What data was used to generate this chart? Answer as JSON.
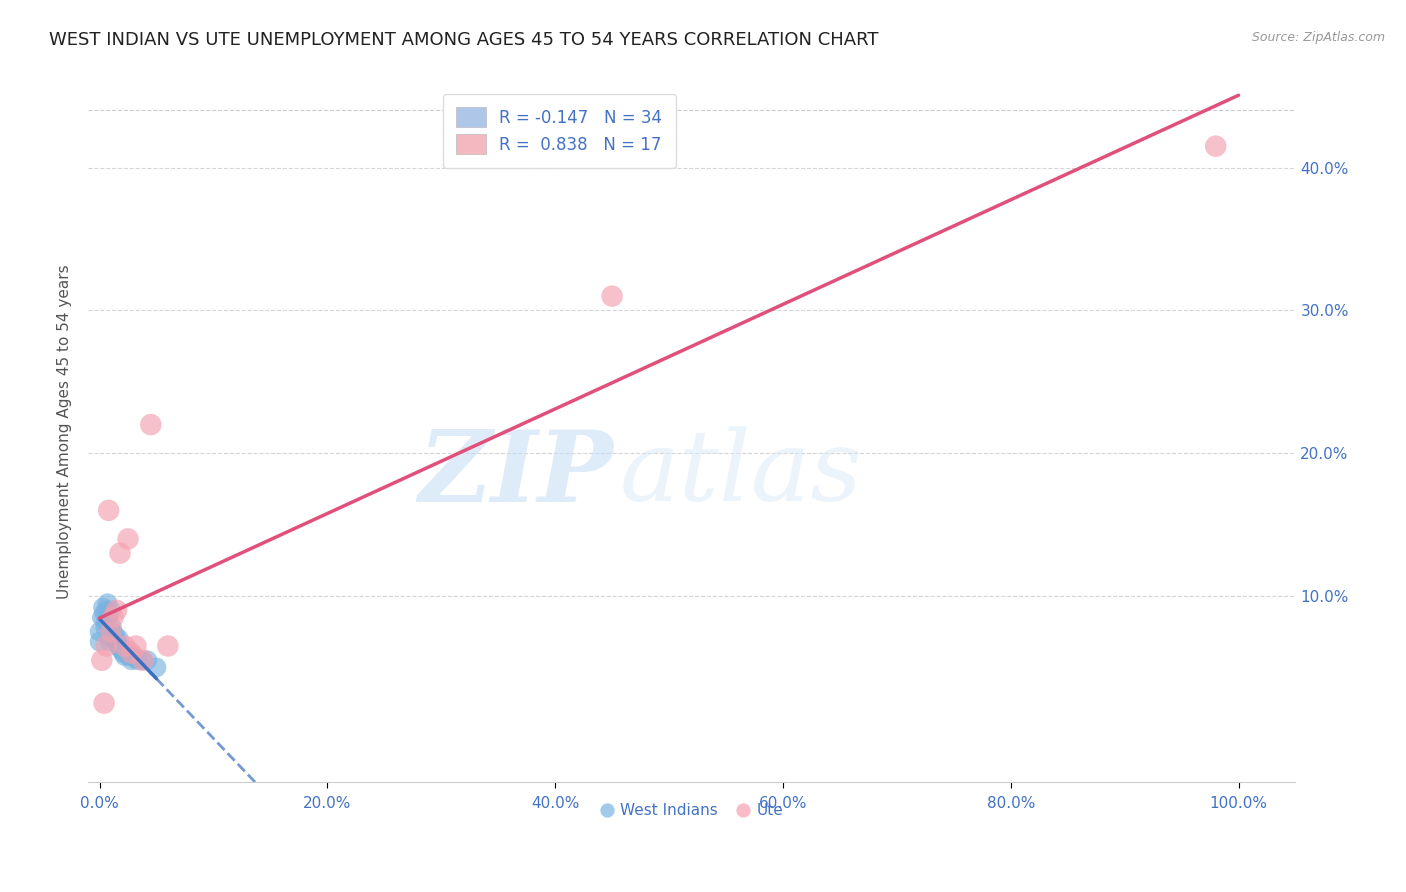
{
  "title": "WEST INDIAN VS UTE UNEMPLOYMENT AMONG AGES 45 TO 54 YEARS CORRELATION CHART",
  "source": "Source: ZipAtlas.com",
  "ylabel_label": "Unemployment Among Ages 45 to 54 years",
  "x_tick_labels": [
    "0.0%",
    "20.0%",
    "40.0%",
    "60.0%",
    "80.0%",
    "100.0%"
  ],
  "x_tick_values": [
    0.0,
    0.2,
    0.4,
    0.6,
    0.8,
    1.0
  ],
  "y_tick_labels": [
    "10.0%",
    "20.0%",
    "30.0%",
    "40.0%"
  ],
  "y_tick_values": [
    0.1,
    0.2,
    0.3,
    0.4
  ],
  "xlim": [
    -0.01,
    1.05
  ],
  "ylim": [
    -0.03,
    0.46
  ],
  "legend_entries": [
    {
      "label": "R = -0.147   N = 34",
      "color": "#aec6e8"
    },
    {
      "label": "R =  0.838   N = 17",
      "color": "#f4b8c1"
    }
  ],
  "legend_bottom_labels": [
    "West Indians",
    "Ute"
  ],
  "west_indian_scatter_x": [
    0.0,
    0.0,
    0.002,
    0.003,
    0.004,
    0.005,
    0.005,
    0.006,
    0.007,
    0.008,
    0.009,
    0.009,
    0.01,
    0.011,
    0.012,
    0.013,
    0.014,
    0.015,
    0.016,
    0.017,
    0.018,
    0.019,
    0.02,
    0.021,
    0.022,
    0.024,
    0.026,
    0.028,
    0.03,
    0.032,
    0.034,
    0.038,
    0.042,
    0.05
  ],
  "west_indian_scatter_y": [
    0.075,
    0.068,
    0.085,
    0.092,
    0.088,
    0.082,
    0.078,
    0.09,
    0.095,
    0.086,
    0.072,
    0.068,
    0.09,
    0.078,
    0.074,
    0.07,
    0.072,
    0.068,
    0.065,
    0.07,
    0.065,
    0.062,
    0.062,
    0.06,
    0.058,
    0.062,
    0.058,
    0.055,
    0.058,
    0.056,
    0.055,
    0.055,
    0.055,
    0.05
  ],
  "ute_scatter_x": [
    0.002,
    0.004,
    0.006,
    0.008,
    0.01,
    0.012,
    0.015,
    0.018,
    0.022,
    0.025,
    0.028,
    0.032,
    0.038,
    0.045,
    0.06,
    0.45,
    0.98
  ],
  "ute_scatter_y": [
    0.055,
    0.025,
    0.065,
    0.16,
    0.075,
    0.085,
    0.09,
    0.13,
    0.065,
    0.14,
    0.06,
    0.065,
    0.055,
    0.22,
    0.065,
    0.31,
    0.415
  ],
  "west_indian_color": "#7ab3e0",
  "ute_color": "#f4a0b0",
  "west_indian_line_color": "#3a6fbf",
  "ute_line_color": "#e0507a",
  "watermark_zip": "ZIP",
  "watermark_atlas": "atlas",
  "title_fontsize": 13,
  "axis_tick_color": "#4472c4",
  "axis_tick_fontsize": 11,
  "background_color": "#ffffff",
  "grid_color": "#cccccc"
}
